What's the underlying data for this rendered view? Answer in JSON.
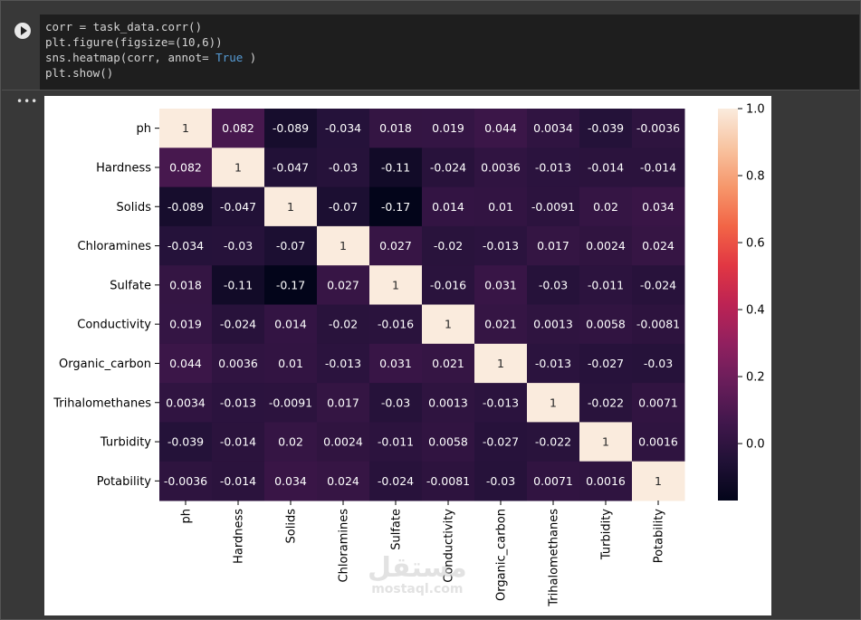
{
  "code": {
    "line1": "corr = task_data.corr()",
    "line2": "plt.figure(figsize=(10,6))",
    "line3_pre": "sns.heatmap(corr, annot= ",
    "line3_kw": "True",
    "line3_post": " )",
    "line4": "plt.show()"
  },
  "output": {
    "menu_icon": "•••"
  },
  "watermark": {
    "arabic": "مستقل",
    "latin": "mostaql.com"
  },
  "chart_data": {
    "type": "heatmap",
    "title": "",
    "labels": [
      "ph",
      "Hardness",
      "Solids",
      "Chloramines",
      "Sulfate",
      "Conductivity",
      "Organic_carbon",
      "Trihalomethanes",
      "Turbidity",
      "Potability"
    ],
    "matrix": [
      [
        1,
        0.082,
        -0.089,
        -0.034,
        0.018,
        0.019,
        0.044,
        0.0034,
        -0.039,
        -0.0036
      ],
      [
        0.082,
        1,
        -0.047,
        -0.03,
        -0.11,
        -0.024,
        0.0036,
        -0.013,
        -0.014,
        -0.014
      ],
      [
        -0.089,
        -0.047,
        1,
        -0.07,
        -0.17,
        0.014,
        0.01,
        -0.0091,
        0.02,
        0.034
      ],
      [
        -0.034,
        -0.03,
        -0.07,
        1,
        0.027,
        -0.02,
        -0.013,
        0.017,
        0.0024,
        0.024
      ],
      [
        0.018,
        -0.11,
        -0.17,
        0.027,
        1,
        -0.016,
        0.031,
        -0.03,
        -0.011,
        -0.024
      ],
      [
        0.019,
        -0.024,
        0.014,
        -0.02,
        -0.016,
        1,
        0.021,
        0.0013,
        0.0058,
        -0.0081
      ],
      [
        0.044,
        0.0036,
        0.01,
        -0.013,
        0.031,
        0.021,
        1,
        -0.013,
        -0.027,
        -0.03
      ],
      [
        0.0034,
        -0.013,
        -0.0091,
        0.017,
        -0.03,
        0.0013,
        -0.013,
        1,
        -0.022,
        0.0071
      ],
      [
        -0.039,
        -0.014,
        0.02,
        0.0024,
        -0.011,
        0.0058,
        -0.027,
        -0.022,
        1,
        0.0016
      ],
      [
        -0.0036,
        -0.014,
        0.034,
        0.024,
        -0.024,
        -0.0081,
        -0.03,
        0.0071,
        0.0016,
        1
      ]
    ],
    "display": [
      [
        "1",
        "0.082",
        "-0.089",
        "-0.034",
        "0.018",
        "0.019",
        "0.044",
        "0.0034",
        "-0.039",
        "-0.0036"
      ],
      [
        "0.082",
        "1",
        "-0.047",
        "-0.03",
        "-0.11",
        "-0.024",
        "0.0036",
        "-0.013",
        "-0.014",
        "-0.014"
      ],
      [
        "-0.089",
        "-0.047",
        "1",
        "-0.07",
        "-0.17",
        "0.014",
        "0.01",
        "-0.0091",
        "0.02",
        "0.034"
      ],
      [
        "-0.034",
        "-0.03",
        "-0.07",
        "1",
        "0.027",
        "-0.02",
        "-0.013",
        "0.017",
        "0.0024",
        "0.024"
      ],
      [
        "0.018",
        "-0.11",
        "-0.17",
        "0.027",
        "1",
        "-0.016",
        "0.031",
        "-0.03",
        "-0.011",
        "-0.024"
      ],
      [
        "0.019",
        "-0.024",
        "0.014",
        "-0.02",
        "-0.016",
        "1",
        "0.021",
        "0.0013",
        "0.0058",
        "-0.0081"
      ],
      [
        "0.044",
        "0.0036",
        "0.01",
        "-0.013",
        "0.031",
        "0.021",
        "1",
        "-0.013",
        "-0.027",
        "-0.03"
      ],
      [
        "0.0034",
        "-0.013",
        "-0.0091",
        "0.017",
        "-0.03",
        "0.0013",
        "-0.013",
        "1",
        "-0.022",
        "0.0071"
      ],
      [
        "-0.039",
        "-0.014",
        "0.02",
        "0.0024",
        "-0.011",
        "0.0058",
        "-0.027",
        "-0.022",
        "1",
        "0.0016"
      ],
      [
        "-0.0036",
        "-0.014",
        "0.034",
        "0.024",
        "-0.024",
        "-0.0081",
        "-0.03",
        "0.0071",
        "0.0016",
        "1"
      ]
    ],
    "colorbar": {
      "range": [
        -0.17,
        1.0
      ],
      "ticks": [
        0.0,
        0.2,
        0.4,
        0.6,
        0.8,
        1.0
      ],
      "tick_labels": [
        "0.0",
        "0.2",
        "0.4",
        "0.6",
        "0.8",
        "1.0"
      ]
    },
    "colormap": "rocket"
  }
}
